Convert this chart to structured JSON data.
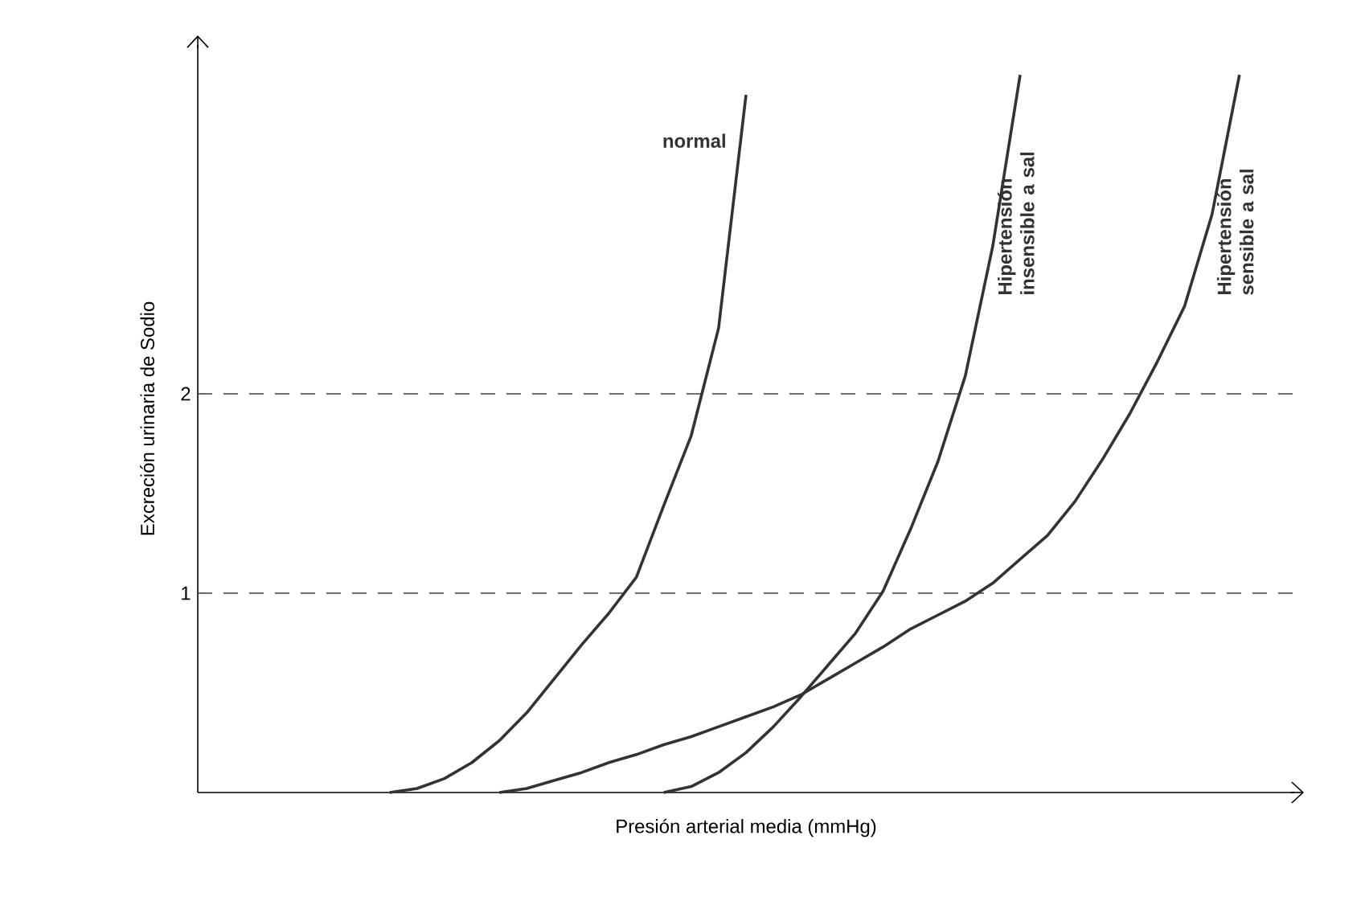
{
  "chart_data": {
    "type": "line",
    "xlabel": "Presión arterial media (mmHg)",
    "ylabel": "Excreción urinaria de Sodio",
    "categories": [
      null,
      null,
      null,
      null,
      null,
      null,
      null,
      null,
      null,
      null,
      null,
      null,
      null,
      null,
      null,
      null,
      null,
      null,
      null,
      null,
      null,
      null,
      null,
      null,
      null,
      null,
      null,
      null,
      null,
      null,
      null,
      null,
      null,
      null,
      null,
      null,
      null,
      null,
      null,
      null,
      null
    ],
    "ylim": [
      0,
      3.75
    ],
    "yticks": [
      1,
      2
    ],
    "series": [
      {
        "name": "normal",
        "color": "#333333",
        "values": [
          null,
          null,
          null,
          null,
          null,
          null,
          null,
          0,
          0.02,
          0.07,
          0.15,
          0.26,
          0.4,
          0.57,
          0.74,
          0.9,
          1.08,
          1.44,
          1.79,
          2.33,
          3.5,
          null,
          null,
          null,
          null,
          null,
          null,
          null,
          null,
          null,
          null,
          null,
          null,
          null,
          null,
          null,
          null,
          null,
          null,
          null,
          null
        ]
      },
      {
        "name": "Hipertensión insensible a sal",
        "color": "#333333",
        "values": [
          null,
          null,
          null,
          null,
          null,
          null,
          null,
          null,
          null,
          null,
          null,
          null,
          null,
          null,
          null,
          null,
          null,
          0,
          0.03,
          0.1,
          0.2,
          0.33,
          0.48,
          0.64,
          0.8,
          1.01,
          1.32,
          1.66,
          2.09,
          2.74,
          3.6,
          null,
          null,
          null,
          null,
          null,
          null,
          null,
          null,
          null,
          null
        ]
      },
      {
        "name": "Hipertensión sensible a sal",
        "color": "#333333",
        "values": [
          null,
          null,
          null,
          null,
          null,
          null,
          null,
          null,
          null,
          null,
          null,
          0,
          0.02,
          0.06,
          0.1,
          0.15,
          0.19,
          0.24,
          0.28,
          0.33,
          0.38,
          0.43,
          0.49,
          0.57,
          0.65,
          0.73,
          0.82,
          0.89,
          0.96,
          1.05,
          1.17,
          1.29,
          1.46,
          1.67,
          1.9,
          2.16,
          2.44,
          2.9,
          3.6,
          null,
          null
        ]
      }
    ],
    "ref_lines": [
      {
        "axis": "y",
        "value": 1,
        "line_style": "dashed"
      },
      {
        "axis": "y",
        "value": 2,
        "line_style": "dashed"
      }
    ]
  }
}
